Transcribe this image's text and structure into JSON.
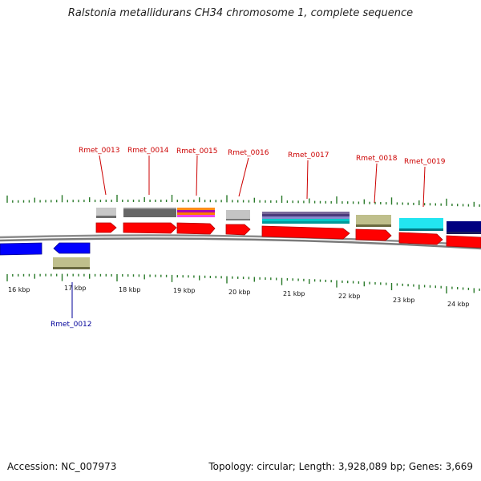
{
  "title": "Ralstonia metallidurans CH34 chromosome 1, complete sequence",
  "footer": {
    "accession": "Accession: NC_007973",
    "summary": "Topology: circular; Length: 3,928,089 bp; Genes: 3,669"
  },
  "colors": {
    "label_forward": "#cc0000",
    "label_reverse": "#000099",
    "tick": "#2a7a2a",
    "backbone": "#8a8a8a",
    "cds_forward": "#ff0000",
    "cds_reverse": "#0000ff"
  },
  "ticks": [
    "16 kbp",
    "17 kbp",
    "18 kbp",
    "19 kbp",
    "20 kbp",
    "21 kbp",
    "22 kbp",
    "23 kbp",
    "24 kbp"
  ],
  "gene_labels": [
    {
      "text": "Rmet_0012",
      "strand": "reverse"
    },
    {
      "text": "Rmet_0013",
      "strand": "forward"
    },
    {
      "text": "Rmet_0014",
      "strand": "forward"
    },
    {
      "text": "Rmet_0015",
      "strand": "forward"
    },
    {
      "text": "Rmet_0016",
      "strand": "forward"
    },
    {
      "text": "Rmet_0017",
      "strand": "forward"
    },
    {
      "text": "Rmet_0018",
      "strand": "forward"
    },
    {
      "text": "Rmet_0019",
      "strand": "forward"
    }
  ]
}
